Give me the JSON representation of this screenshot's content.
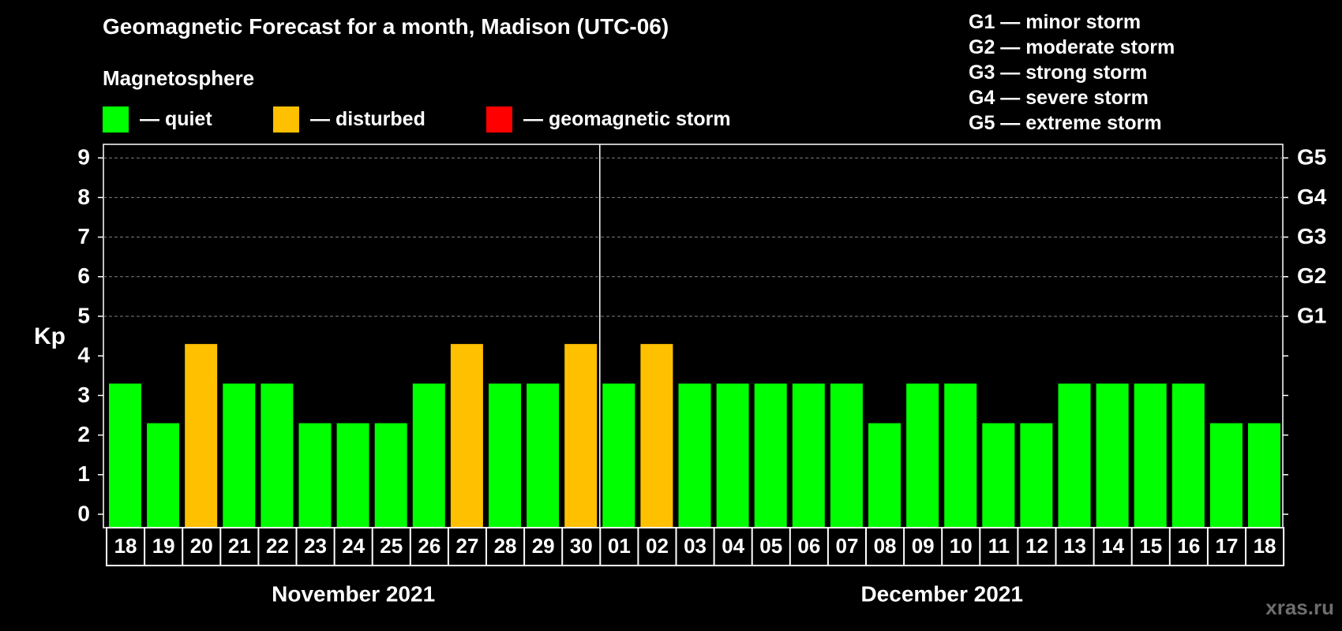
{
  "title": "Geomagnetic Forecast for a month, Madison (UTC-06)",
  "subtitle": "Magnetosphere",
  "legend": [
    {
      "label": "— quiet",
      "color": "#00ff00"
    },
    {
      "label": "— disturbed",
      "color": "#ffc000"
    },
    {
      "label": "— geomagnetic storm",
      "color": "#ff0000"
    }
  ],
  "storm_levels": [
    "G1 — minor storm",
    "G2 — moderate storm",
    "G3 — strong storm",
    "G4 — severe storm",
    "G5 — extreme storm"
  ],
  "watermark": "xras.ru",
  "chart_data": {
    "type": "bar",
    "ylabel": "Kp",
    "ylim": [
      0,
      9
    ],
    "yticks": [
      "0",
      "1",
      "2",
      "3",
      "4",
      "5",
      "6",
      "7",
      "8",
      "9"
    ],
    "right_axis_labels": [
      {
        "value": 5,
        "label": "G1"
      },
      {
        "value": 6,
        "label": "G2"
      },
      {
        "value": 7,
        "label": "G3"
      },
      {
        "value": 8,
        "label": "G4"
      },
      {
        "value": 9,
        "label": "G5"
      }
    ],
    "grid": "dashed horizontal at Kp 5–9",
    "categories": [
      "18",
      "19",
      "20",
      "21",
      "22",
      "23",
      "24",
      "25",
      "26",
      "27",
      "28",
      "29",
      "30",
      "01",
      "02",
      "03",
      "04",
      "05",
      "06",
      "07",
      "08",
      "09",
      "10",
      "11",
      "12",
      "13",
      "14",
      "15",
      "16",
      "17",
      "18"
    ],
    "values": [
      3,
      2,
      4,
      3,
      3,
      2,
      2,
      2,
      3,
      4,
      3,
      3,
      4,
      3,
      4,
      3,
      3,
      3,
      3,
      3,
      2,
      3,
      3,
      2,
      2,
      3,
      3,
      3,
      3,
      2,
      2
    ],
    "months": [
      {
        "label": "November 2021",
        "start_index": 0,
        "end_index": 12
      },
      {
        "label": "December 2021",
        "start_index": 13,
        "end_index": 30
      }
    ],
    "colors": {
      "quiet": "#00ff00",
      "disturbed": "#ffc000",
      "storm": "#ff0000"
    }
  }
}
